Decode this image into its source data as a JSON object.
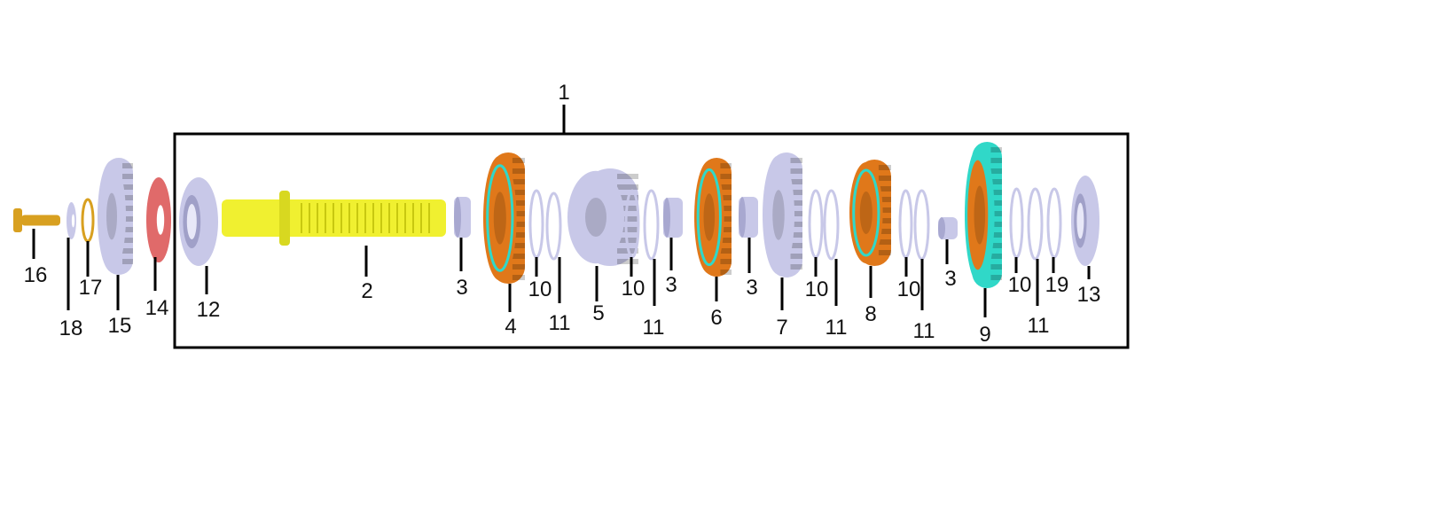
{
  "assembly_label": "1",
  "callouts": [
    "16",
    "18",
    "17",
    "15",
    "14",
    "12",
    "2",
    "3",
    "4",
    "10",
    "11",
    "5",
    "10",
    "11",
    "3",
    "6",
    "3",
    "7",
    "10",
    "11",
    "8",
    "10",
    "11",
    "3",
    "9",
    "10",
    "11",
    "19",
    "13"
  ],
  "colors": {
    "lavender": "#c8c8e8",
    "orange": "#e0781a",
    "yellow": "#f0f030",
    "gold": "#d8a020",
    "red": "#e06a6a",
    "teal": "#30d8c8"
  }
}
